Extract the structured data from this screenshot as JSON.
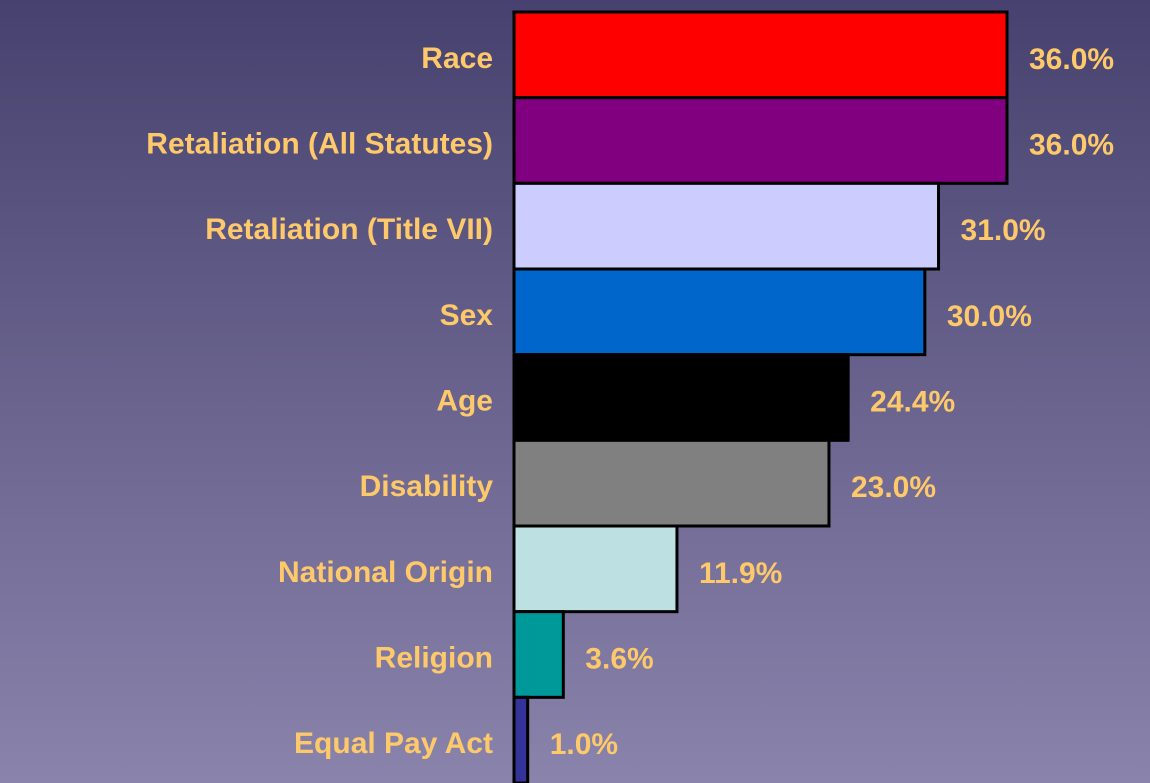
{
  "chart_data": {
    "type": "barh",
    "categories": [
      "Race",
      "Retaliation (All Statutes)",
      "Retaliation (Title VII)",
      "Sex",
      "Age",
      "Disability",
      "National Origin",
      "Religion",
      "Equal Pay Act"
    ],
    "values": [
      36.0,
      36.0,
      31.0,
      30.0,
      24.4,
      23.0,
      11.9,
      3.6,
      1.0
    ],
    "value_labels": [
      "36.0%",
      "36.0%",
      "31.0%",
      "30.0%",
      "24.4%",
      "23.0%",
      "11.9%",
      "3.6%",
      "1.0%"
    ],
    "colors": [
      "#ff0000",
      "#800080",
      "#ccccff",
      "#0066cc",
      "#000000",
      "#808080",
      "#bde0e3",
      "#009999",
      "#333399"
    ]
  }
}
